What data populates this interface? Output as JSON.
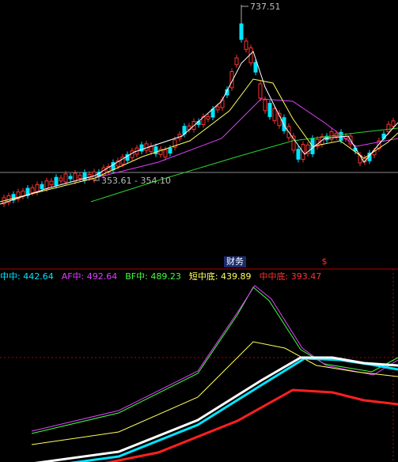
{
  "chart": {
    "high_label": "737.51",
    "low_label": "353.61 - 354.10"
  },
  "markers": {
    "finance": "财务",
    "dollar": "$"
  },
  "legend": [
    {
      "text": "中中: 442.64",
      "color": "#00e5ff"
    },
    {
      "text": "AF中: 492.64",
      "color": "#e040fb"
    },
    {
      "text": "BF中: 489.23",
      "color": "#40ff40"
    },
    {
      "text": "短中底: 439.89",
      "color": "#ffff60"
    },
    {
      "text": "中中底: 393.47",
      "color": "#ff3030"
    }
  ]
}
